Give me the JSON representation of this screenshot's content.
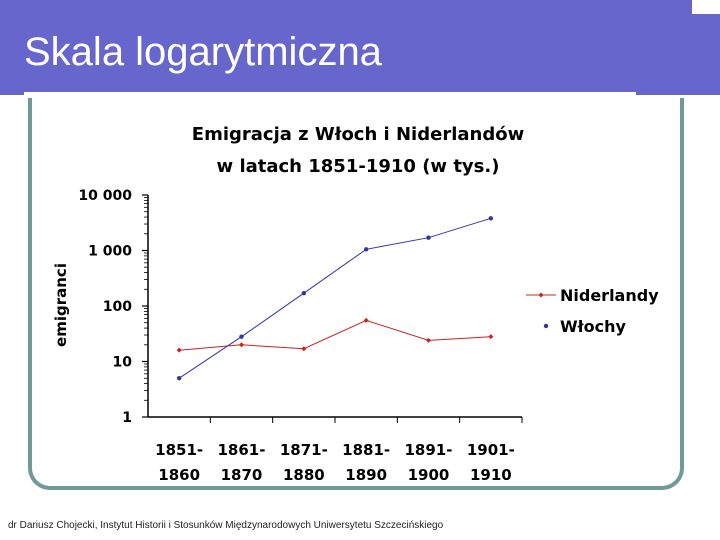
{
  "slide": {
    "title": "Skala logarytmiczna",
    "footer": "dr Dariusz Chojecki, Instytut Historii i Stosunków Międzynarodowych Uniwersytetu Szczecińskiego"
  },
  "chart_data": {
    "type": "line",
    "title_lines": [
      "Emigracja z Włoch i Niderlandów",
      "w latach 1851-1910 (w tys.)"
    ],
    "ylabel": "emigranci",
    "xlabel": "",
    "yscale": "log",
    "ylim": [
      1,
      10000
    ],
    "y_ticks": [
      {
        "value": 1,
        "label": "1"
      },
      {
        "value": 10,
        "label": "10"
      },
      {
        "value": 100,
        "label": "100"
      },
      {
        "value": 1000,
        "label": "1 000"
      },
      {
        "value": 10000,
        "label": "10 000"
      }
    ],
    "categories": [
      {
        "line1": "1851-",
        "line2": "1860"
      },
      {
        "line1": "1861-",
        "line2": "1870"
      },
      {
        "line1": "1871-",
        "line2": "1880"
      },
      {
        "line1": "1881-",
        "line2": "1890"
      },
      {
        "line1": "1891-",
        "line2": "1900"
      },
      {
        "line1": "1901-",
        "line2": "1910"
      }
    ],
    "series": [
      {
        "name": "Niderlandy",
        "color": "#cc2222",
        "marker": "diamond",
        "values": [
          16,
          20,
          17,
          55,
          24,
          28
        ]
      },
      {
        "name": "Włochy",
        "color": "#3333aa",
        "marker": "circle",
        "values": [
          5,
          28,
          170,
          1050,
          1700,
          3800
        ]
      }
    ],
    "legend_position": "right",
    "grid": false
  }
}
